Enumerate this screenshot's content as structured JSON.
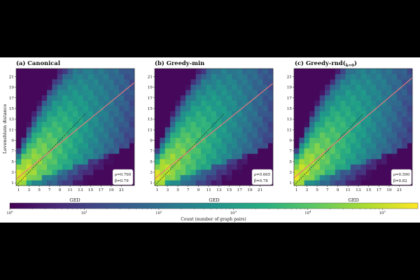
{
  "figure": {
    "ylabel": "Levenshtein distance",
    "xlabel": "GED",
    "colorbar": {
      "label": "Count (number of graph pairs)",
      "ticks": [
        "10^0",
        "10^1",
        "10^2",
        "10^3",
        "10^4",
        "10^5"
      ],
      "colormap": "viridis",
      "scale": "log"
    }
  },
  "chart_data": [
    {
      "type": "heatmap",
      "title": "(a) Canonical",
      "xlabel": "GED",
      "ylabel": "Levenshtein distance",
      "x_ticks": [
        1,
        3,
        5,
        7,
        9,
        11,
        13,
        15,
        17,
        19,
        21
      ],
      "y_ticks": [
        1,
        3,
        5,
        7,
        9,
        11,
        13,
        15,
        17,
        19,
        21
      ],
      "xlim": [
        0.5,
        23.5
      ],
      "ylim": [
        0.5,
        22.5
      ],
      "count_scale": "log",
      "count_range": [
        1,
        300000
      ],
      "identity_line": true,
      "fit_line": {
        "slope": 0.79,
        "intercept": 1.3
      },
      "rho_label": "ρ=0.700",
      "beta_label": "β=0.79"
    },
    {
      "type": "heatmap",
      "title": "(b) Greedy-min",
      "xlabel": "GED",
      "ylabel": "Levenshtein distance",
      "x_ticks": [
        1,
        3,
        5,
        7,
        9,
        11,
        13,
        15,
        17,
        19,
        21
      ],
      "y_ticks": [
        1,
        3,
        5,
        7,
        9,
        11,
        13,
        15,
        17,
        19,
        21
      ],
      "xlim": [
        0.5,
        23.5
      ],
      "ylim": [
        0.5,
        22.5
      ],
      "count_scale": "log",
      "count_range": [
        1,
        300000
      ],
      "identity_line": true,
      "fit_line": {
        "slope": 0.78,
        "intercept": 1.4
      },
      "rho_label": "ρ=0.665",
      "beta_label": "β=0.78"
    },
    {
      "type": "heatmap",
      "title": "(c) Greedy-rnd(",
      "title_sub": "k=0",
      "title_end": ")",
      "xlabel": "GED",
      "ylabel": "Levenshtein distance",
      "x_ticks": [
        1,
        3,
        5,
        7,
        9,
        11,
        13,
        15,
        17,
        19,
        21
      ],
      "y_ticks": [
        1,
        3,
        5,
        7,
        9,
        11,
        13,
        15,
        17,
        19,
        21
      ],
      "xlim": [
        0.5,
        23.5
      ],
      "ylim": [
        0.5,
        22.5
      ],
      "count_scale": "log",
      "count_range": [
        1,
        300000
      ],
      "identity_line": true,
      "fit_line": {
        "slope": 0.82,
        "intercept": 1.5
      },
      "rho_label": "ρ=0.590",
      "beta_label": "β=0.82"
    }
  ],
  "colors": {
    "fit_line": "#f07a7a",
    "identity_line": "#1a1a1a",
    "background": "#000000"
  }
}
